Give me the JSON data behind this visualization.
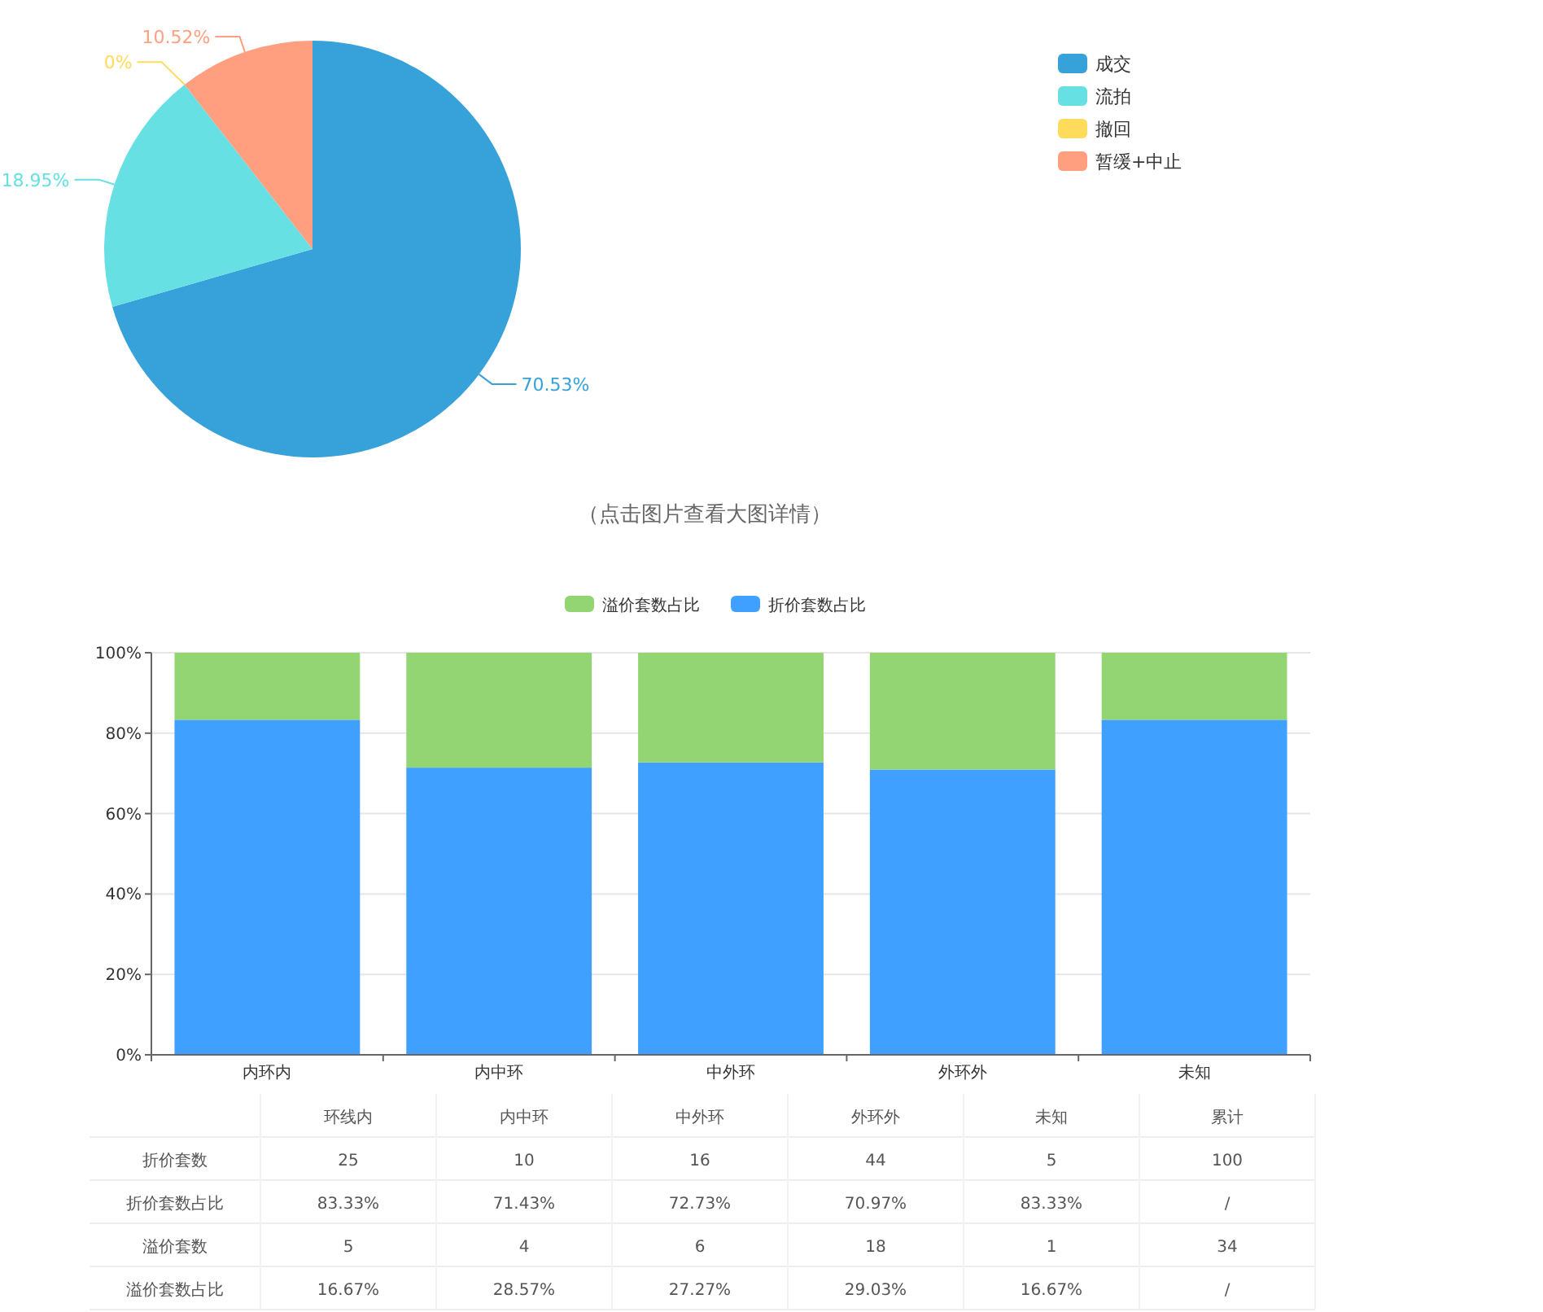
{
  "chart_data": [
    {
      "type": "pie",
      "categories": [
        "成交",
        "流拍",
        "撤回",
        "暂缓+中止"
      ],
      "values": [
        70.53,
        18.95,
        0,
        10.52
      ],
      "value_labels": [
        "70.53%",
        "18.95%",
        "0%",
        "10.52%"
      ],
      "colors": [
        "#37a2da",
        "#67e0e3",
        "#ffdb5c",
        "#ff9f7f"
      ],
      "legend": "top right",
      "annotations": [
        "（点击图片查看大图详情）"
      ]
    },
    {
      "type": "bar",
      "stacked": true,
      "categories": [
        "内环内",
        "内中环",
        "中外环",
        "外环外",
        "未知"
      ],
      "series": [
        {
          "name": "折价套数占比",
          "color": "#3fa0ff",
          "values": [
            83.33,
            71.43,
            72.73,
            70.97,
            83.33
          ]
        },
        {
          "name": "溢价套数占比",
          "color": "#94d573",
          "values": [
            16.67,
            28.57,
            27.27,
            29.03,
            16.67
          ]
        }
      ],
      "ylim": [
        0,
        100
      ],
      "yticks": [
        {
          "value": 0,
          "label": "0%"
        },
        {
          "value": 20,
          "label": "20%"
        },
        {
          "value": 40,
          "label": "40%"
        },
        {
          "value": 60,
          "label": "60%"
        },
        {
          "value": 80,
          "label": "80%"
        },
        {
          "value": 100,
          "label": "100%"
        }
      ],
      "grid": "y",
      "legend": "top"
    },
    {
      "type": "other",
      "categories": [
        "环线内",
        "内中环",
        "中外环",
        "外环外",
        "未知",
        "累计"
      ],
      "series": [
        {
          "name": "折价套数",
          "values": [
            25,
            10,
            16,
            44,
            5,
            100
          ],
          "value_labels": [
            "25",
            "10",
            "16",
            "44",
            "5",
            "100"
          ]
        },
        {
          "name": "折价套数占比",
          "values": [
            83.33,
            71.43,
            72.73,
            70.97,
            83.33,
            null
          ],
          "value_labels": [
            "83.33%",
            "71.43%",
            "72.73%",
            "70.97%",
            "83.33%",
            "/"
          ]
        },
        {
          "name": "溢价套数",
          "values": [
            5,
            4,
            6,
            18,
            1,
            34
          ],
          "value_labels": [
            "5",
            "4",
            "6",
            "18",
            "1",
            "34"
          ]
        },
        {
          "name": "溢价套数占比",
          "values": [
            16.67,
            28.57,
            27.27,
            29.03,
            16.67,
            null
          ],
          "value_labels": [
            "16.67%",
            "28.57%",
            "27.27%",
            "29.03%",
            "16.67%",
            "/"
          ]
        }
      ]
    }
  ]
}
